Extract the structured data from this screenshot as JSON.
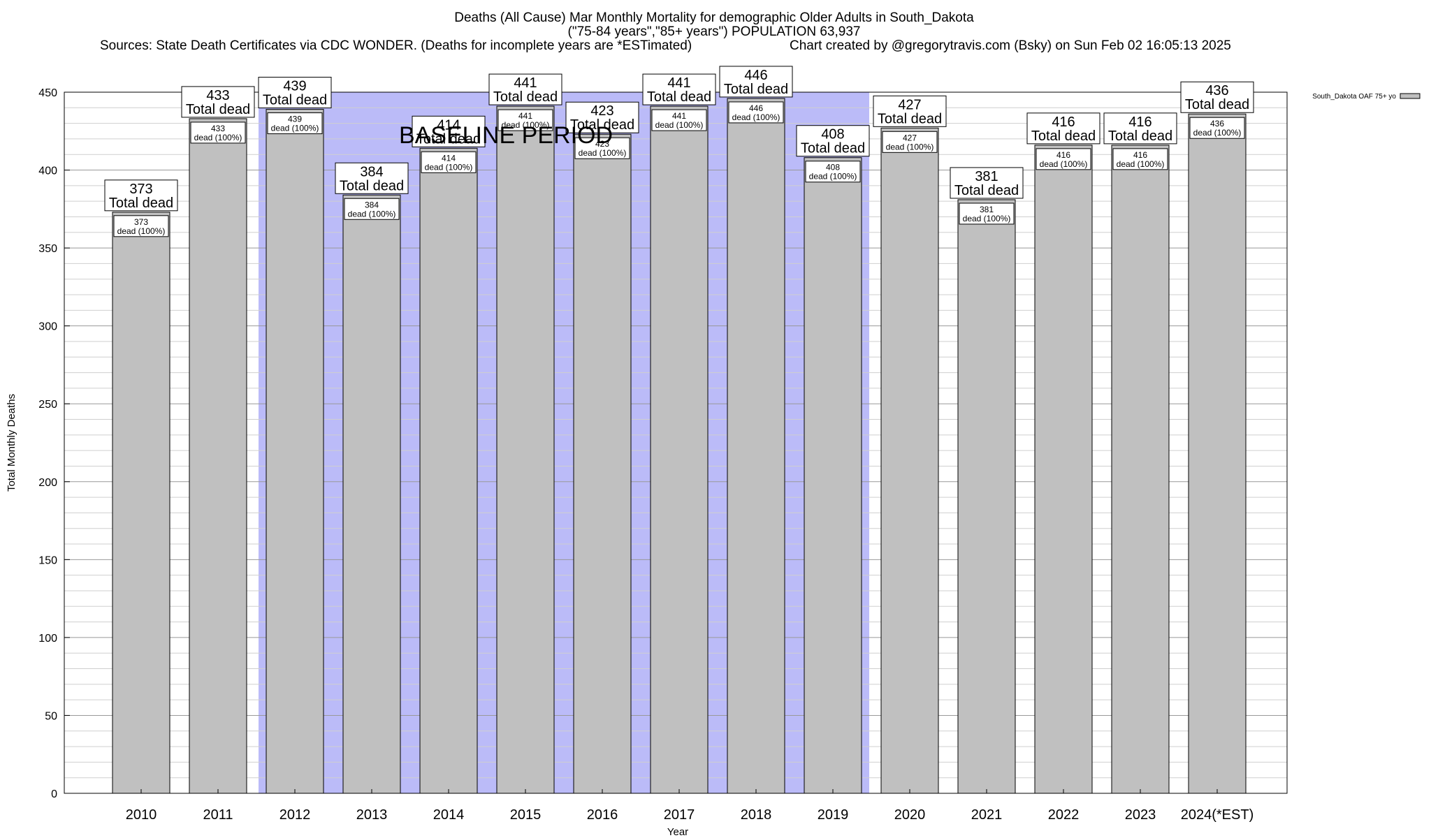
{
  "header": {
    "title_line1": "Deaths (All Cause) Mar Monthly Mortality for demographic Older Adults in South_Dakota",
    "title_line2": "(\"75-84 years\",\"85+ years\") POPULATION 63,937",
    "sources": "Sources: State Death Certificates via CDC WONDER. (Deaths for incomplete years are *ESTimated)",
    "credit": "Chart created by @gregorytravis.com (Bsky) on Sun Feb 02 16:05:13 2025"
  },
  "chart_data": {
    "type": "bar",
    "xlabel": "Year",
    "ylabel": "Total Monthly Deaths",
    "ylim": [
      0,
      450
    ],
    "y_ticks": [
      0,
      50,
      100,
      150,
      200,
      250,
      300,
      350,
      400,
      450
    ],
    "y_minor_step": 10,
    "grid": true,
    "categories": [
      "2010",
      "2011",
      "2012",
      "2013",
      "2014",
      "2015",
      "2016",
      "2017",
      "2018",
      "2019",
      "2020",
      "2021",
      "2022",
      "2023",
      "2024(*EST)"
    ],
    "series": [
      {
        "name": "South_Dakota OAF 75+ yo",
        "values": [
          373,
          433,
          439,
          384,
          414,
          441,
          423,
          441,
          446,
          408,
          427,
          381,
          416,
          416,
          436
        ],
        "color": "#c0c0c0"
      }
    ],
    "total_label_text": "Total dead",
    "bar_label_text": "dead (100%)",
    "baseline_period": {
      "label": "BASELINE PERIOD",
      "start": "2012",
      "end": "2019",
      "color": "#bbbbf8"
    },
    "legend_position": "top-right"
  }
}
